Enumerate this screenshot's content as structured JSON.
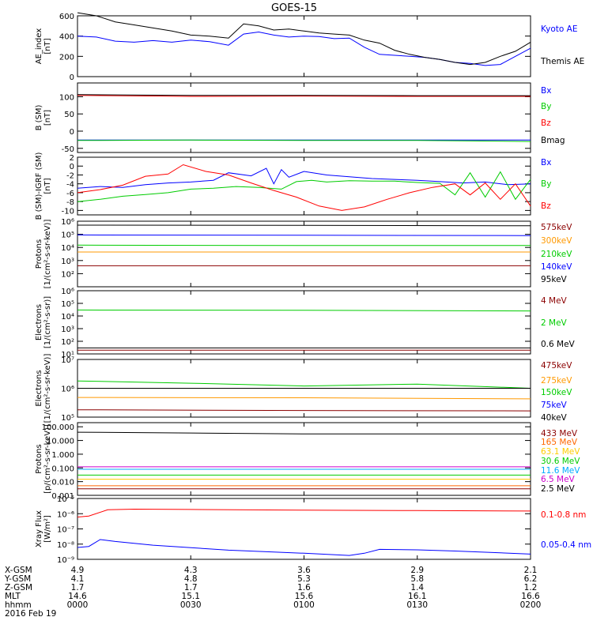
{
  "title": "GOES-15",
  "footer": {
    "rows": [
      {
        "label": "X-GSM",
        "values": [
          "4.9",
          "4.3",
          "3.6",
          "2.9",
          "2.1"
        ]
      },
      {
        "label": "Y-GSM",
        "values": [
          "4.1",
          "4.8",
          "5.3",
          "5.8",
          "6.2"
        ]
      },
      {
        "label": "Z-GSM",
        "values": [
          "1.7",
          "1.7",
          "1.6",
          "1.4",
          "1.2"
        ]
      },
      {
        "label": "MLT",
        "values": [
          "14.6",
          "15.1",
          "15.6",
          "16.1",
          "16.6"
        ]
      },
      {
        "label": "hhmm",
        "values": [
          "0000",
          "0030",
          "0100",
          "0130",
          "0200"
        ]
      }
    ],
    "date": "2016 Feb 19"
  },
  "chart_data": [
    {
      "type": "line",
      "scale": "linear",
      "ylabel": [
        "AE_index",
        "[nT]"
      ],
      "ylim": [
        0,
        600
      ],
      "yticks": [
        0,
        200,
        400,
        600
      ],
      "ytick_labels": [
        "0",
        "200",
        "400",
        "600"
      ],
      "series": [
        {
          "name": "Kyoto AE",
          "color": "#0000ff",
          "t": [
            0,
            5,
            10,
            15,
            20,
            25,
            30,
            35,
            40,
            44,
            48,
            52,
            56,
            60,
            64,
            68,
            72,
            76,
            80,
            84,
            88,
            92,
            96,
            100,
            104,
            108,
            112,
            116,
            120
          ],
          "y": [
            400,
            390,
            350,
            340,
            355,
            340,
            360,
            345,
            310,
            420,
            440,
            410,
            390,
            400,
            395,
            375,
            380,
            290,
            220,
            210,
            200,
            190,
            170,
            140,
            130,
            110,
            120,
            200,
            280
          ]
        },
        {
          "name": "Themis AE",
          "color": "#000000",
          "t": [
            0,
            5,
            10,
            15,
            20,
            25,
            30,
            35,
            40,
            44,
            48,
            52,
            56,
            60,
            64,
            68,
            72,
            76,
            80,
            84,
            88,
            92,
            96,
            100,
            104,
            108,
            112,
            116,
            120
          ],
          "y": [
            630,
            600,
            540,
            510,
            480,
            450,
            410,
            400,
            380,
            520,
            500,
            460,
            470,
            450,
            430,
            420,
            410,
            360,
            330,
            260,
            220,
            190,
            170,
            140,
            120,
            140,
            200,
            250,
            340
          ]
        }
      ]
    },
    {
      "type": "line",
      "scale": "linear",
      "ylabel": [
        "B (SM)",
        "[nT]"
      ],
      "ylim": [
        -62,
        140
      ],
      "yticks": [
        -50,
        0,
        50,
        100
      ],
      "ytick_labels": [
        "-50",
        "0",
        "50",
        "100"
      ],
      "series": [
        {
          "name": "Bx",
          "color": "#0000ff",
          "t": [
            0,
            120
          ],
          "y": [
            -26,
            -26
          ]
        },
        {
          "name": "By",
          "color": "#00cc00",
          "t": [
            0,
            30,
            60,
            90,
            120
          ],
          "y": [
            -27,
            -26,
            -27,
            -27,
            -30
          ]
        },
        {
          "name": "Bz",
          "color": "#ff0000",
          "t": [
            0,
            30,
            60,
            90,
            120
          ],
          "y": [
            104,
            101,
            102,
            101,
            101
          ]
        },
        {
          "name": "Bmag",
          "color": "#000000",
          "t": [
            0,
            30,
            60,
            90,
            120
          ],
          "y": [
            106,
            104,
            104,
            103,
            103
          ]
        }
      ]
    },
    {
      "type": "line",
      "scale": "linear",
      "ylabel": [
        "B (SM)-IGRF (SM)",
        "[nT]"
      ],
      "ylim": [
        -11,
        2
      ],
      "yticks": [
        -10,
        -8,
        -6,
        -4,
        -2,
        0,
        2
      ],
      "ytick_labels": [
        "-10",
        "-8",
        "-6",
        "-4",
        "-2",
        "0",
        "2"
      ],
      "series": [
        {
          "name": "Bx",
          "color": "#0000ff",
          "t": [
            0,
            6,
            12,
            18,
            24,
            30,
            36,
            40,
            46,
            50,
            52,
            54,
            56,
            60,
            66,
            72,
            78,
            84,
            90,
            96,
            102,
            108,
            114,
            120
          ],
          "y": [
            -5,
            -4.6,
            -4.8,
            -4.2,
            -3.8,
            -3.6,
            -3.2,
            -1.5,
            -2.2,
            -0.5,
            -4,
            -0.8,
            -2.5,
            -1.2,
            -2,
            -2.4,
            -2.8,
            -3,
            -3.2,
            -3.5,
            -3.8,
            -3.6,
            -4.2,
            -4
          ]
        },
        {
          "name": "By",
          "color": "#00cc00",
          "t": [
            0,
            6,
            12,
            18,
            24,
            30,
            36,
            42,
            48,
            54,
            58,
            62,
            66,
            72,
            78,
            84,
            90,
            96,
            100,
            104,
            108,
            112,
            116,
            120
          ],
          "y": [
            -8,
            -7.5,
            -6.8,
            -6.4,
            -6,
            -5.2,
            -5,
            -4.6,
            -4.8,
            -5.2,
            -3.5,
            -3.2,
            -3.6,
            -3.3,
            -3.4,
            -3.4,
            -3.7,
            -3.9,
            -6.5,
            -1.5,
            -7,
            -1.3,
            -7.5,
            -3
          ]
        },
        {
          "name": "Bz",
          "color": "#ff0000",
          "t": [
            0,
            6,
            12,
            18,
            24,
            28,
            34,
            40,
            46,
            52,
            58,
            64,
            70,
            76,
            82,
            88,
            94,
            100,
            104,
            108,
            112,
            116,
            120
          ],
          "y": [
            -6,
            -5.3,
            -4.3,
            -2.3,
            -1.8,
            0.3,
            -1.2,
            -2,
            -3.8,
            -5.5,
            -7,
            -9,
            -10,
            -9.2,
            -7.5,
            -6,
            -4.8,
            -4,
            -6.5,
            -3.8,
            -7.5,
            -4,
            -9
          ]
        }
      ]
    },
    {
      "type": "line",
      "scale": "log",
      "ylabel": [
        "Protons",
        "[1/(cm²-s-sr-keV)]"
      ],
      "ylim": [
        10,
        1000000
      ],
      "yticks": [
        100,
        1000,
        10000,
        100000,
        1000000
      ],
      "ytick_labels": [
        "10²",
        "10³",
        "10⁴",
        "10⁵",
        "10⁶"
      ],
      "series": [
        {
          "name": "575keV",
          "color": "#8b0000",
          "t": [
            0,
            120
          ],
          "y": [
            400,
            400
          ]
        },
        {
          "name": "300keV",
          "color": "#ff9900",
          "t": [
            0,
            120
          ],
          "y": [
            4500,
            4500
          ]
        },
        {
          "name": "210keV",
          "color": "#00cc00",
          "t": [
            0,
            60,
            120
          ],
          "y": [
            15000,
            14000,
            14000
          ]
        },
        {
          "name": "140keV",
          "color": "#0000ff",
          "t": [
            0,
            60,
            120
          ],
          "y": [
            90000,
            85000,
            80000
          ]
        },
        {
          "name": "95keV",
          "color": "#000000",
          "t": [
            0,
            60,
            120
          ],
          "y": [
            500000,
            480000,
            450000
          ]
        }
      ]
    },
    {
      "type": "line",
      "scale": "log",
      "ylabel": [
        "Electrons",
        "[1/(cm²-s-sr)]"
      ],
      "ylim": [
        10,
        1000000
      ],
      "yticks": [
        10,
        100,
        1000,
        10000,
        100000,
        1000000
      ],
      "ytick_labels": [
        "10¹",
        "10²",
        "10³",
        "10⁴",
        "10⁵",
        "10⁶"
      ],
      "series": [
        {
          "name": "4 MeV",
          "color": "#8b0000",
          "t": [
            0,
            120
          ],
          "y": [
            20,
            20
          ]
        },
        {
          "name": "2 MeV",
          "color": "#00cc00",
          "t": [
            0,
            60,
            120
          ],
          "y": [
            30000,
            28000,
            25000
          ]
        },
        {
          "name": "0.6 MeV",
          "color": "#000000",
          "t": [
            0,
            120
          ],
          "y": [
            30,
            30
          ]
        }
      ]
    },
    {
      "type": "line",
      "scale": "log",
      "ylabel": [
        "Electrons",
        "[1/(cm²-s-sr-keV)]"
      ],
      "ylim": [
        100000,
        10000000
      ],
      "yticks": [
        100000,
        1000000,
        10000000
      ],
      "ytick_labels": [
        "10⁵",
        "10⁶",
        "10⁷"
      ],
      "series": [
        {
          "name": "475keV",
          "color": "#8b0000",
          "t": [
            0,
            60,
            120
          ],
          "y": [
            180000,
            170000,
            165000
          ]
        },
        {
          "name": "275keV",
          "color": "#ff9900",
          "t": [
            0,
            60,
            120
          ],
          "y": [
            480000,
            470000,
            430000
          ]
        },
        {
          "name": "150keV",
          "color": "#00cc00",
          "t": [
            0,
            30,
            60,
            90,
            120
          ],
          "y": [
            1800000,
            1500000,
            1200000,
            1400000,
            1000000
          ]
        },
        {
          "name": "75keV",
          "color": "#0000ff",
          "t": [
            0,
            120
          ],
          "y": [
            1000000,
            1000000
          ]
        },
        {
          "name": "40keV",
          "color": "#000000",
          "t": [
            0,
            120
          ],
          "y": [
            1000000,
            1000000
          ]
        }
      ]
    },
    {
      "type": "line",
      "scale": "log",
      "ylabel": [
        "Protons",
        "[p/(cm²-s-sr-keV)]"
      ],
      "ylim": [
        0.001,
        200
      ],
      "yticks": [
        0.001,
        0.01,
        0.1,
        1,
        10,
        100
      ],
      "ytick_labels": [
        "0.001",
        "0.010",
        "0.100",
        "1.000",
        "10.000",
        "100.000"
      ],
      "series": [
        {
          "name": "433 MeV",
          "color": "#8b0000",
          "t": [
            0,
            120
          ],
          "y": [
            0.003,
            0.003
          ]
        },
        {
          "name": "165 MeV",
          "color": "#ff6600",
          "t": [
            0,
            120
          ],
          "y": [
            0.005,
            0.005
          ]
        },
        {
          "name": "63.1 MeV",
          "color": "#ffcc00",
          "t": [
            0,
            120
          ],
          "y": [
            0.015,
            0.015
          ]
        },
        {
          "name": "30.6 MeV",
          "color": "#00cc00",
          "t": [
            0,
            120
          ],
          "y": [
            0.03,
            0.03
          ]
        },
        {
          "name": "11.6 MeV",
          "color": "#00aaff",
          "t": [
            0,
            120
          ],
          "y": [
            0.08,
            0.08
          ]
        },
        {
          "name": "6.5 MeV",
          "color": "#cc00cc",
          "t": [
            0,
            120
          ],
          "y": [
            0.12,
            0.12
          ]
        },
        {
          "name": "2.5 MeV",
          "color": "#000000",
          "t": [
            0,
            30,
            60,
            90,
            120
          ],
          "y": [
            40,
            35,
            30,
            30,
            30
          ]
        }
      ]
    },
    {
      "type": "line",
      "scale": "log",
      "ylabel": [
        "Xray Flux",
        "[W/m²]"
      ],
      "ylim": [
        1e-09,
        1e-05
      ],
      "yticks": [
        1e-09,
        1e-08,
        1e-07,
        1e-06,
        1e-05
      ],
      "ytick_labels": [
        "10⁻⁹",
        "10⁻⁸",
        "10⁻⁷",
        "10⁻⁶",
        "10⁻⁵"
      ],
      "series": [
        {
          "name": "0.1-0.8 nm",
          "color": "#ff0000",
          "t": [
            0,
            3,
            8,
            15,
            30,
            60,
            90,
            120
          ],
          "y": [
            6e-07,
            7e-07,
            1.8e-06,
            2e-06,
            1.9e-06,
            1.7e-06,
            1.6e-06,
            1.5e-06
          ]
        },
        {
          "name": "0.05-0.4 nm",
          "color": "#0000ff",
          "t": [
            0,
            3,
            6,
            10,
            20,
            40,
            60,
            72,
            76,
            80,
            90,
            100,
            110,
            120
          ],
          "y": [
            6e-09,
            7e-09,
            2e-08,
            1.5e-08,
            8.5e-09,
            4e-09,
            2.5e-09,
            1.8e-09,
            2.5e-09,
            4.5e-09,
            4.2e-09,
            3.5e-09,
            2.8e-09,
            2.2e-09
          ]
        }
      ]
    }
  ]
}
